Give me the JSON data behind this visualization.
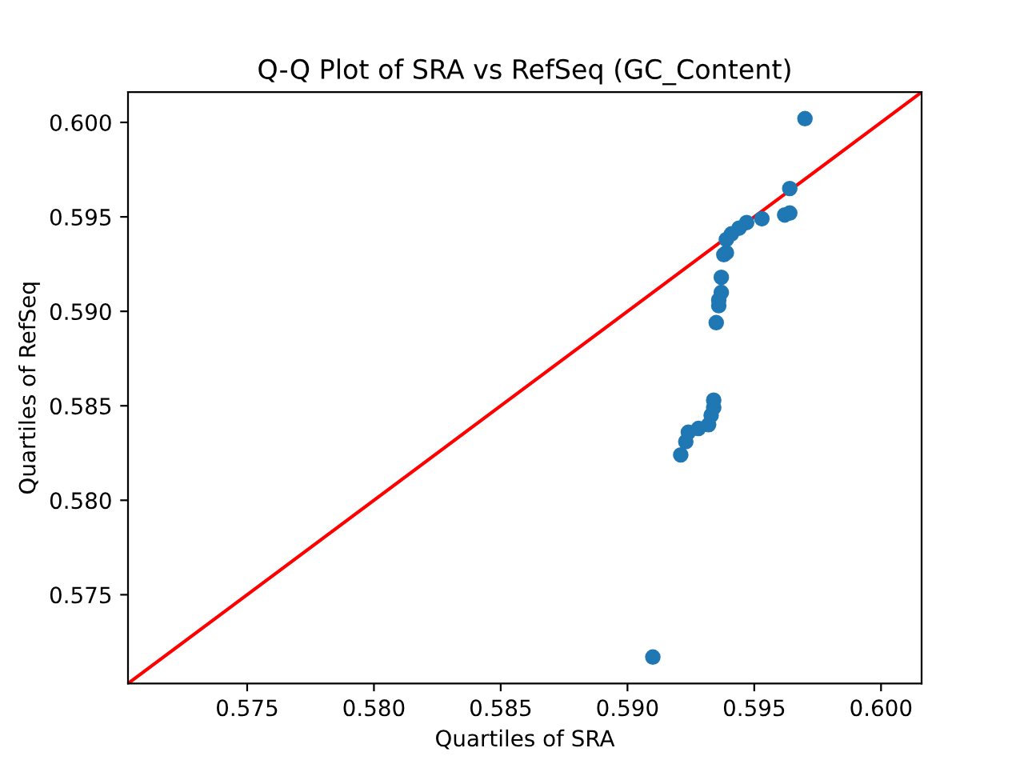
{
  "chart_data": {
    "type": "scatter",
    "title": "Q-Q Plot of SRA vs RefSeq (GC_Content)",
    "xlabel": "Quartiles of SRA",
    "ylabel": "Quartiles of RefSeq",
    "xlim": [
      0.5703,
      0.6016
    ],
    "ylim": [
      0.5703,
      0.6016
    ],
    "xticks": [
      0.575,
      {
        "value": 0.58,
        "label": "0.580"
      },
      0.585,
      {
        "value": 0.59,
        "label": "0.590"
      },
      0.595,
      {
        "value": 0.6,
        "label": "0.600"
      }
    ],
    "yticks": [
      0.575,
      {
        "value": 0.58,
        "label": "0.580"
      },
      0.585,
      {
        "value": 0.59,
        "label": "0.590"
      },
      0.595,
      {
        "value": 0.6,
        "label": "0.600"
      }
    ],
    "grid": false,
    "marker": "circle",
    "series": [
      {
        "color": "#1f77b4",
        "x": [
          0.591,
          0.5921,
          0.5923,
          0.5924,
          0.5928,
          0.5932,
          0.5933,
          0.5934,
          0.5934,
          0.5935,
          0.5936,
          0.5936,
          0.5937,
          0.5937,
          0.5938,
          0.5939,
          0.5939,
          0.5941,
          0.5944,
          0.5947,
          0.5953,
          0.5962,
          0.5964,
          0.5964,
          0.597
        ],
        "values": [
          0.5717,
          0.5824,
          0.5831,
          0.5836,
          0.5838,
          0.584,
          0.5845,
          0.5849,
          0.5853,
          0.5894,
          0.5903,
          0.5906,
          0.591,
          0.5918,
          0.593,
          0.5931,
          0.5938,
          0.5941,
          0.5944,
          0.5947,
          0.5949,
          0.5951,
          0.5952,
          0.5965,
          0.6002
        ]
      },
      {
        "type": "line",
        "marker": "none",
        "color": "#ff0000",
        "x": [
          0.5703,
          0.6016
        ],
        "values": [
          0.5703,
          0.6016
        ]
      }
    ]
  }
}
